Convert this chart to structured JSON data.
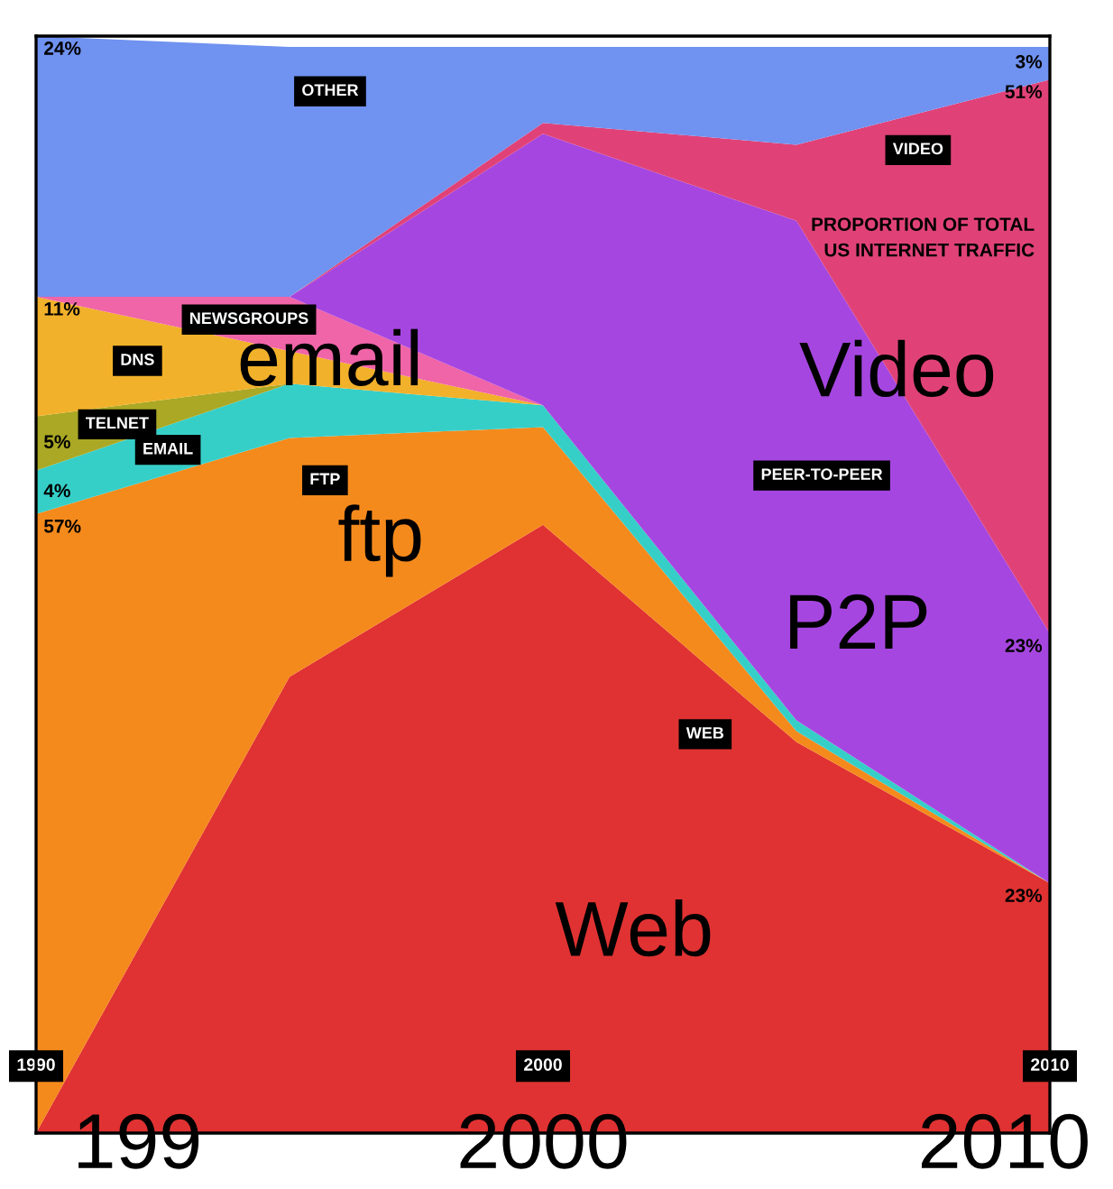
{
  "chart_data": {
    "type": "area",
    "stacked": true,
    "title": "PROPORTION OF TOTAL\nUS INTERNET TRAFFIC",
    "x": [
      1990,
      1995,
      2000,
      2005,
      2010
    ],
    "xlim": [
      1990,
      2010
    ],
    "ylim": [
      0,
      101
    ],
    "xticks": [
      1990,
      2000,
      2010
    ],
    "tick_labels": "x",
    "grid": false,
    "legend": false,
    "series": [
      {
        "name": "WEB",
        "color": "#e03232",
        "values": [
          0,
          42,
          56,
          36,
          23
        ],
        "value_labels": [
          null,
          null,
          null,
          null,
          "23%"
        ]
      },
      {
        "name": "FTP",
        "color": "#f58a1c",
        "values": [
          57,
          22,
          9,
          1,
          0
        ],
        "value_labels": [
          "57%",
          null,
          null,
          null,
          null
        ]
      },
      {
        "name": "EMAIL",
        "color": "#36cfc8",
        "values": [
          4,
          5,
          2,
          1,
          0
        ],
        "value_labels": [
          "4%",
          null,
          null,
          null,
          null
        ]
      },
      {
        "name": "TELNET",
        "color": "#aaa824",
        "values": [
          5,
          0,
          null,
          null,
          null
        ],
        "value_labels": [
          "5%",
          null,
          null,
          null,
          null
        ]
      },
      {
        "name": "DNS",
        "color": "#f2b12a",
        "values": [
          11,
          3,
          0,
          null,
          null
        ],
        "value_labels": [
          "11%",
          null,
          null,
          null,
          null
        ]
      },
      {
        "name": "NEWSGROUPS",
        "color": "#f064a8",
        "values": [
          0,
          5,
          0,
          null,
          null
        ],
        "value_labels": [
          null,
          null,
          null,
          null,
          null
        ]
      },
      {
        "name": "PEER-TO-PEER",
        "color": "#a646e0",
        "values": [
          null,
          0,
          25,
          46,
          23
        ],
        "value_labels": [
          null,
          null,
          null,
          null,
          "23%"
        ]
      },
      {
        "name": "VIDEO",
        "color": "#e04278",
        "values": [
          null,
          0,
          1,
          7,
          51
        ],
        "value_labels": [
          null,
          null,
          null,
          null,
          "51%"
        ]
      },
      {
        "name": "OTHER",
        "color": "#7092f0",
        "values": [
          24,
          23,
          7,
          9,
          3
        ],
        "value_labels": [
          "24%",
          null,
          null,
          null,
          "3%"
        ]
      }
    ],
    "annotations": [
      "email",
      "ftp",
      "Video",
      "P2P",
      "Web",
      "199",
      "2000",
      "2010"
    ]
  }
}
